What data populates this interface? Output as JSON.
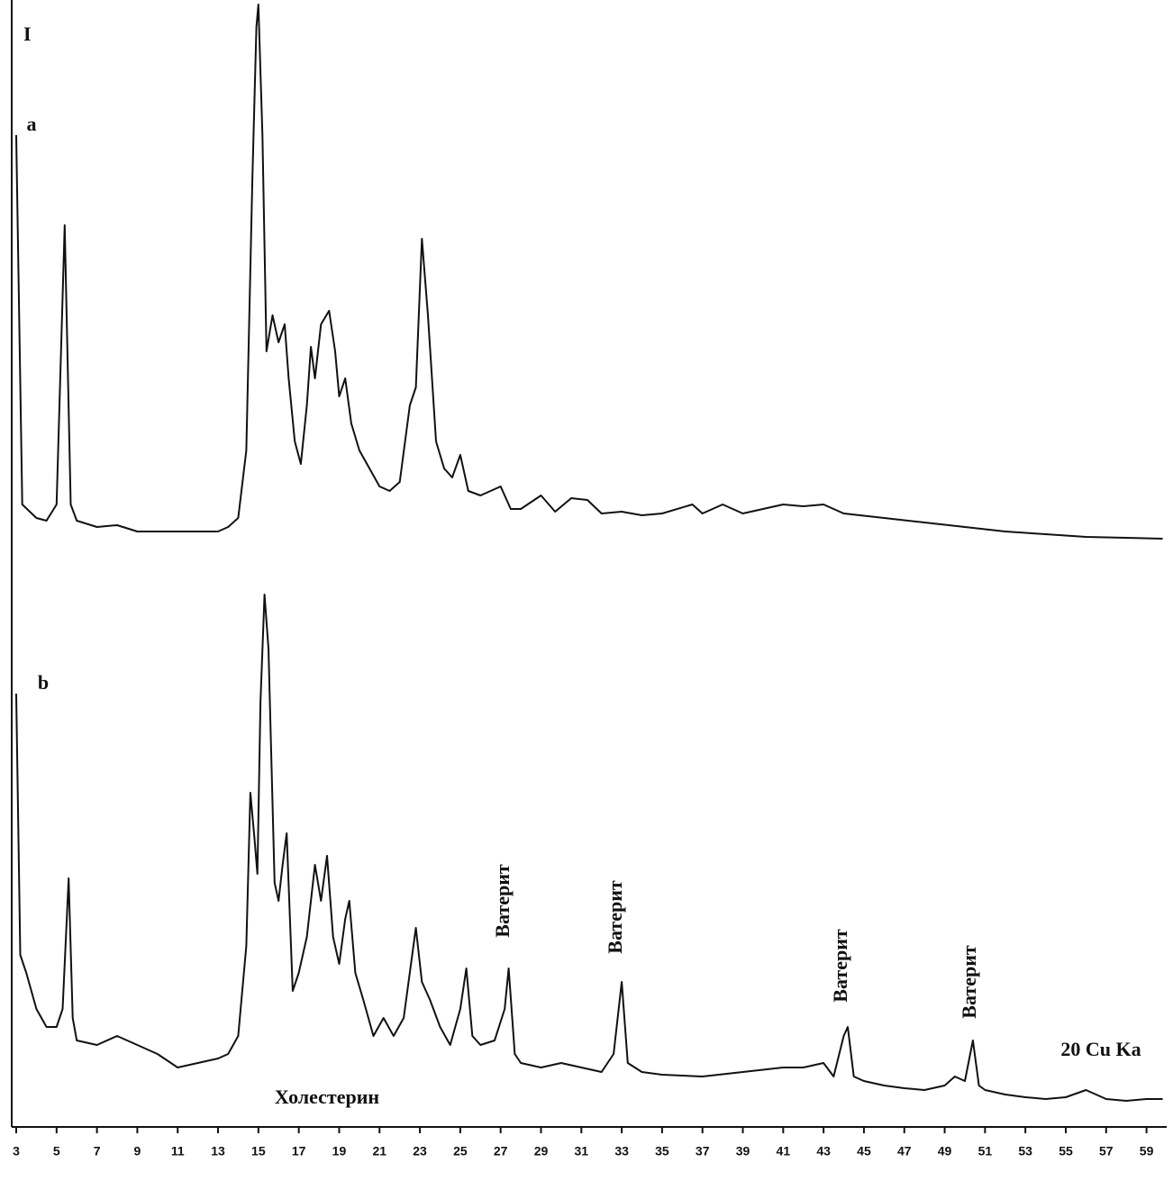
{
  "chart_data": {
    "type": "line",
    "y_label": "I",
    "x_label": "20 Cu Ka",
    "annotations": [
      "Ватерит",
      "Ватерит",
      "Ватерит",
      "Ватерит",
      "Холестерин"
    ],
    "xlim": [
      3,
      60
    ],
    "ylim": [
      0,
      1250
    ],
    "xticks": [
      3,
      5,
      7,
      9,
      11,
      13,
      15,
      17,
      19,
      21,
      23,
      25,
      27,
      29,
      31,
      33,
      35,
      37,
      39,
      41,
      43,
      45,
      47,
      49,
      51,
      53,
      55,
      57,
      59
    ],
    "color": "#111111",
    "series": [
      {
        "name": "a",
        "x": [
          3,
          3.3,
          4,
          4.5,
          5,
          5.4,
          5.7,
          6,
          7,
          8,
          9,
          13,
          13.5,
          14,
          14.4,
          14.7,
          14.9,
          15,
          15.2,
          15.4,
          15.7,
          16,
          16.3,
          16.5,
          16.8,
          17.1,
          17.4,
          17.6,
          17.8,
          18.1,
          18.5,
          18.8,
          19,
          19.3,
          19.6,
          20,
          20.5,
          21,
          21.5,
          22,
          22.5,
          22.8,
          23.1,
          23.4,
          23.8,
          24.2,
          24.6,
          25,
          25.4,
          26,
          27,
          27.5,
          28,
          29,
          29.7,
          30.5,
          31.3,
          32,
          33,
          34,
          35,
          36.5,
          37,
          38,
          39,
          40,
          41,
          42,
          43,
          44,
          46,
          48,
          50,
          52,
          54,
          56,
          58,
          59.8
        ],
        "values": [
          1101,
          691,
          676,
          673,
          691,
          1001,
          691,
          673,
          666,
          668,
          661,
          661,
          666,
          676,
          751,
          1051,
          1221,
          1246,
          1101,
          861,
          901,
          871,
          891,
          831,
          761,
          736,
          801,
          866,
          831,
          891,
          906,
          861,
          811,
          831,
          781,
          751,
          731,
          711,
          706,
          716,
          801,
          821,
          986,
          901,
          761,
          731,
          721,
          746,
          706,
          701,
          711,
          686,
          686,
          701,
          683,
          698,
          696,
          681,
          683,
          679,
          681,
          691,
          681,
          691,
          681,
          686,
          691,
          689,
          691,
          681,
          676,
          671,
          666,
          661,
          658,
          655,
          654,
          653
        ]
      },
      {
        "name": "b",
        "x": [
          3,
          3.2,
          3.5,
          4,
          4.5,
          5,
          5.3,
          5.6,
          5.8,
          6,
          7,
          8,
          9,
          10,
          11,
          12,
          13,
          13.5,
          14,
          14.4,
          14.6,
          14.8,
          14.95,
          15.1,
          15.3,
          15.5,
          15.8,
          16,
          16.2,
          16.4,
          16.7,
          17,
          17.4,
          17.8,
          18.1,
          18.4,
          18.7,
          19,
          19.3,
          19.5,
          19.8,
          20.2,
          20.7,
          21.2,
          21.7,
          22.2,
          22.8,
          23.1,
          23.5,
          24,
          24.5,
          25,
          25.3,
          25.6,
          26,
          26.7,
          27.2,
          27.4,
          27.7,
          28,
          29,
          30,
          31,
          32,
          32.6,
          33,
          33.3,
          34,
          35,
          37,
          39,
          41,
          42,
          43,
          43.5,
          44,
          44.2,
          44.5,
          45,
          46,
          47,
          48,
          49,
          49.5,
          50,
          50.4,
          50.7,
          51,
          52,
          53,
          54,
          55,
          56,
          57,
          58,
          59,
          59.8
        ],
        "values": [
          481,
          191,
          171,
          131,
          111,
          111,
          131,
          276,
          121,
          96,
          91,
          101,
          91,
          81,
          66,
          71,
          76,
          81,
          101,
          201,
          371,
          321,
          281,
          471,
          591,
          531,
          271,
          251,
          291,
          326,
          151,
          171,
          211,
          291,
          251,
          301,
          211,
          181,
          231,
          251,
          171,
          141,
          101,
          121,
          101,
          121,
          221,
          161,
          141,
          111,
          91,
          131,
          176,
          101,
          91,
          96,
          131,
          176,
          81,
          71,
          66,
          71,
          66,
          61,
          81,
          161,
          71,
          61,
          58,
          56,
          61,
          66,
          66,
          71,
          56,
          101,
          111,
          56,
          51,
          46,
          43,
          41,
          46,
          56,
          51,
          96,
          46,
          41,
          36,
          33,
          31,
          33,
          41,
          31,
          29,
          31,
          31
        ]
      }
    ]
  }
}
